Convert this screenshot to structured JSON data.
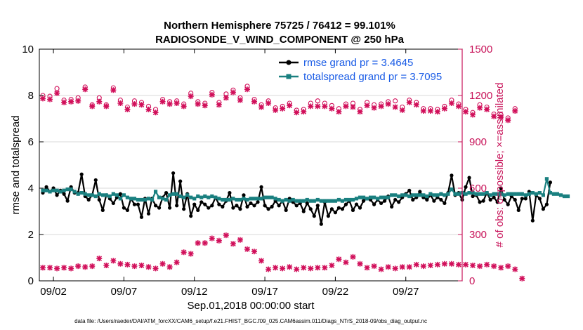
{
  "chart_data": {
    "type": "line",
    "title_line1": "Northern Hemisphere 75725 / 76412 = 99.101%",
    "title_line2": "RADIOSONDE_V_WIND_COMPONENT @ 250 hPa",
    "xlabel": "Sep.01,2018 00:00:00 start",
    "ylabel_left": "rmse and totalspread",
    "ylabel_right": "# of obs: o=possible; ×=assimilated",
    "footer": "data file: /Users/raeder/DAI/ATM_forcXX/CAM6_setup/f.e21.FHIST_BGC.f09_025.CAM6assim.011/Diags_NTrS_2018-09/obs_diag_output.nc",
    "xlim": [
      1,
      31
    ],
    "xticks": [
      2,
      7,
      12,
      17,
      22,
      27
    ],
    "xtick_labels": [
      "09/02",
      "09/07",
      "09/12",
      "09/17",
      "09/22",
      "09/27"
    ],
    "ylim_left": [
      0,
      10
    ],
    "yticks_left": [
      0,
      2,
      4,
      6,
      8,
      10
    ],
    "ylim_right": [
      0,
      1500
    ],
    "yticks_right": [
      0,
      300,
      600,
      900,
      1200,
      1500
    ],
    "colors": {
      "rmse": "#000000",
      "totalspread": "#1a8080",
      "obs": "#d10f5a",
      "legend_text": "#1a5ce6",
      "right_axis": "#c8145a"
    },
    "legend": [
      {
        "name": "rmse grand pr = 3.4645",
        "color": "#000000"
      },
      {
        "name": "totalspread grand pr = 3.7095",
        "color": "#1a8080"
      }
    ],
    "x_start": 1.25,
    "x_step": 0.25,
    "series": [
      {
        "name": "rmse",
        "axis": "left",
        "values": [
          3.8,
          4.05,
          3.85,
          4.0,
          3.7,
          3.9,
          3.75,
          3.45,
          4.05,
          3.8,
          3.8,
          4.6,
          3.65,
          3.5,
          3.7,
          4.35,
          3.5,
          3.05,
          3.7,
          3.55,
          3.35,
          3.6,
          3.75,
          3.15,
          3.05,
          3.55,
          3.3,
          3.3,
          2.75,
          3.55,
          2.9,
          3.55,
          3.25,
          3.15,
          3.6,
          3.8,
          3.15,
          4.65,
          3.25,
          4.3,
          3.1,
          3.75,
          2.8,
          3.3,
          3.05,
          3.4,
          3.3,
          3.15,
          3.25,
          3.6,
          3.3,
          3.2,
          3.45,
          3.8,
          3.15,
          3.25,
          3.1,
          3.7,
          3.2,
          3.35,
          3.25,
          3.4,
          4.05,
          3.25,
          3.1,
          3.2,
          3.45,
          3.25,
          3.45,
          3.05,
          3.55,
          3.4,
          3.25,
          3.35,
          3.0,
          3.35,
          3.1,
          2.8,
          3.25,
          2.45,
          3.4,
          2.8,
          3.1,
          2.95,
          3.15,
          3.1,
          3.3,
          3.45,
          3.05,
          3.3,
          3.15,
          3.45,
          3.55,
          3.5,
          3.3,
          3.5,
          3.35,
          3.45,
          3.65,
          3.2,
          3.5,
          3.4,
          3.6,
          3.75,
          3.9,
          3.5,
          3.6,
          3.85,
          3.6,
          3.5,
          3.7,
          3.45,
          3.6,
          3.5,
          3.35,
          3.8,
          4.55,
          3.7,
          3.8,
          3.5,
          4.05,
          4.45,
          3.65,
          3.7,
          3.4,
          3.45,
          3.8,
          3.5,
          3.6,
          3.4,
          4.0,
          3.5,
          3.3,
          3.65,
          3.5,
          3.05,
          3.55,
          3.55,
          3.85,
          2.6,
          3.7,
          3.55,
          3.1,
          3.3,
          4.25
        ]
      },
      {
        "name": "totalspread",
        "axis": "left",
        "values": [
          3.9,
          3.9,
          3.85,
          3.9,
          3.9,
          3.85,
          3.9,
          3.95,
          3.95,
          3.85,
          3.75,
          3.8,
          3.75,
          3.7,
          3.7,
          3.65,
          3.75,
          3.7,
          3.7,
          3.65,
          3.75,
          3.7,
          3.55,
          3.7,
          3.6,
          3.55,
          3.55,
          3.5,
          3.5,
          3.5,
          3.55,
          3.5,
          3.85,
          3.6,
          3.55,
          3.5,
          3.7,
          3.75,
          3.75,
          3.65,
          3.6,
          3.7,
          3.6,
          3.55,
          3.65,
          3.6,
          3.65,
          3.6,
          3.65,
          3.6,
          3.55,
          3.5,
          3.5,
          3.5,
          3.55,
          3.5,
          3.5,
          3.55,
          3.5,
          3.55,
          3.55,
          3.55,
          3.55,
          3.6,
          3.6,
          3.6,
          3.55,
          3.5,
          3.45,
          3.5,
          3.45,
          3.5,
          3.45,
          3.45,
          3.45,
          3.5,
          3.45,
          3.45,
          3.5,
          3.45,
          3.45,
          3.45,
          3.45,
          3.45,
          3.5,
          3.45,
          3.5,
          3.5,
          3.5,
          3.55,
          3.6,
          3.6,
          3.55,
          3.6,
          3.6,
          3.55,
          3.6,
          3.6,
          3.6,
          3.7,
          3.7,
          3.65,
          3.7,
          3.7,
          3.65,
          3.7,
          3.7,
          3.7,
          3.7,
          3.65,
          3.75,
          3.7,
          3.7,
          3.75,
          3.7,
          3.75,
          3.95,
          3.75,
          3.75,
          3.8,
          3.75,
          3.8,
          3.8,
          3.75,
          3.75,
          3.75,
          3.8,
          3.7,
          3.75,
          3.75,
          3.75,
          3.7,
          3.75,
          3.75,
          3.75,
          3.75,
          3.75,
          3.7,
          3.75,
          3.8,
          3.75,
          3.8,
          3.7,
          4.4,
          3.8,
          3.75,
          3.75,
          3.7,
          3.65,
          3.65
        ]
      },
      {
        "name": "obs possible",
        "axis": "right",
        "marker": "o",
        "x_start": 1.25,
        "x_step": 0.5,
        "values": [
          1200,
          1195,
          1245,
          1170,
          1175,
          1185,
          1255,
          1140,
          1185,
          1140,
          1250,
          1170,
          1125,
          1165,
          1155,
          1130,
          1110,
          1175,
          1160,
          1165,
          1145,
          1215,
          1160,
          1150,
          1220,
          1155,
          1210,
          1235,
          1185,
          1260,
          1175,
          1140,
          1165,
          1120,
          1130,
          1150,
          1105,
          1110,
          1150,
          1165,
          1150,
          1135,
          1115,
          1145,
          1150,
          1110,
          1155,
          1140,
          1145,
          1160,
          1165,
          1125,
          1170,
          1155,
          1115,
          1115,
          1110,
          1130,
          1170,
          1145,
          1110,
          1090,
          1140,
          1125,
          1080,
          1075,
          1055,
          1115
        ]
      },
      {
        "name": "obs assimilated",
        "axis": "right",
        "marker": "x",
        "x_start": 1.25,
        "x_step": 0.5,
        "values": [
          1180,
          1175,
          1215,
          1155,
          1160,
          1165,
          1240,
          1130,
          1160,
          1130,
          1235,
          1150,
          1110,
          1145,
          1140,
          1110,
          1090,
          1160,
          1145,
          1150,
          1130,
          1195,
          1145,
          1135,
          1205,
          1140,
          1185,
          1220,
          1170,
          1240,
          1160,
          1125,
          1150,
          1105,
          1115,
          1135,
          1090,
          1095,
          1130,
          1130,
          1130,
          1115,
          1095,
          1130,
          1125,
          1095,
          1135,
          1120,
          1130,
          1145,
          1125,
          1105,
          1155,
          1140,
          1100,
          1100,
          1095,
          1115,
          1150,
          1130,
          1095,
          1075,
          1120,
          1110,
          1065,
          1060,
          1040,
          1100
        ]
      },
      {
        "name": "obs assimilated (surface)",
        "axis": "right",
        "marker": "x",
        "x_start": 1.25,
        "x_step": 0.5,
        "values": [
          85,
          85,
          80,
          85,
          80,
          95,
          90,
          95,
          145,
          100,
          130,
          110,
          105,
          95,
          100,
          90,
          80,
          110,
          90,
          120,
          185,
          175,
          245,
          245,
          275,
          260,
          295,
          240,
          265,
          205,
          190,
          130,
          75,
          85,
          80,
          90,
          75,
          85,
          80,
          85,
          85,
          100,
          140,
          120,
          155,
          110,
          85,
          95,
          75,
          90,
          80,
          90,
          90,
          105,
          95,
          100,
          105,
          110,
          110,
          105,
          105,
          100,
          95,
          105,
          95,
          85,
          95,
          75,
          15
        ]
      }
    ]
  }
}
